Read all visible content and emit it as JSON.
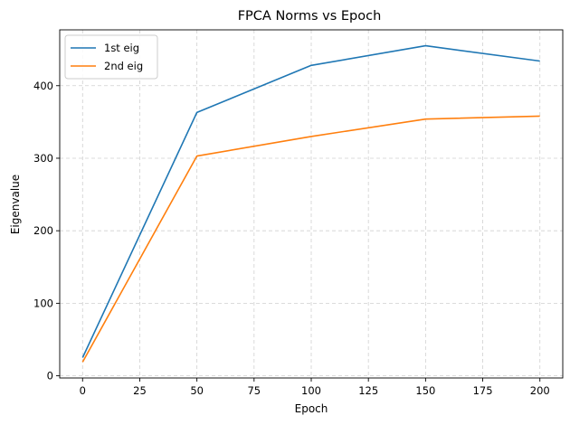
{
  "chart_data": {
    "type": "line",
    "title": "FPCA Norms vs Epoch",
    "xlabel": "Epoch",
    "ylabel": "Eigenvalue",
    "x": [
      0,
      50,
      100,
      150,
      200
    ],
    "series": [
      {
        "name": "1st eig",
        "color": "#1f77b4",
        "values": [
          25,
          363,
          428,
          455,
          434
        ]
      },
      {
        "name": "2nd eig",
        "color": "#ff7f0e",
        "values": [
          19,
          303,
          330,
          354,
          358
        ]
      }
    ],
    "xlim": [
      -10,
      210
    ],
    "ylim": [
      -3,
      477
    ],
    "xticks": [
      0,
      25,
      50,
      75,
      100,
      125,
      150,
      175,
      200
    ],
    "yticks": [
      0,
      100,
      200,
      300,
      400
    ],
    "grid": true,
    "legend_position": "top-left"
  }
}
